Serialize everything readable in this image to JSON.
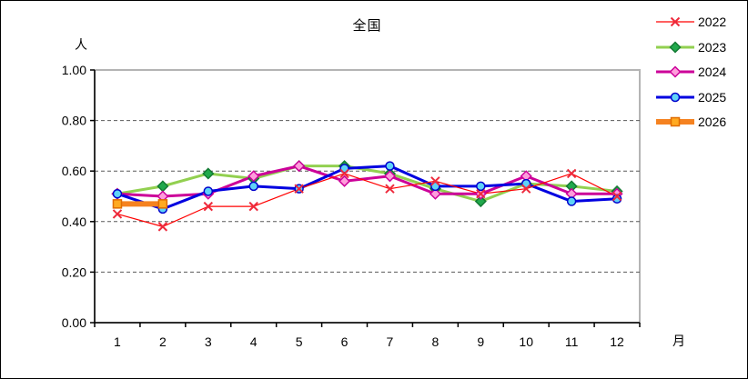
{
  "chart_data": {
    "type": "line",
    "title": "全国",
    "ylabel": "人",
    "xlabel": "月",
    "categories": [
      "1",
      "2",
      "3",
      "4",
      "5",
      "6",
      "7",
      "8",
      "9",
      "10",
      "11",
      "12"
    ],
    "ylim": [
      0.0,
      1.0
    ],
    "ytick_step": 0.2,
    "ytick_labels": [
      "0.00",
      "0.20",
      "0.40",
      "0.60",
      "0.80",
      "1.00"
    ],
    "grid": "horizontal-dashed",
    "legend_position": "top-right-outside",
    "series": [
      {
        "name": "2022",
        "line_color": "#ff0000",
        "line_width": 1.2,
        "marker": "x",
        "marker_color": "#ee2a3c",
        "values": [
          0.43,
          0.38,
          0.46,
          0.46,
          0.53,
          0.59,
          0.53,
          0.56,
          0.51,
          0.53,
          0.59,
          0.5
        ]
      },
      {
        "name": "2023",
        "line_color": "#92d050",
        "line_width": 3,
        "marker": "diamond-filled",
        "marker_color": "#137a33",
        "marker_fill": "#21a94c",
        "values": [
          0.51,
          0.54,
          0.59,
          0.57,
          0.62,
          0.62,
          0.59,
          0.53,
          0.48,
          0.55,
          0.54,
          0.52
        ]
      },
      {
        "name": "2024",
        "line_color": "#cc0099",
        "line_width": 3,
        "marker": "diamond-open",
        "marker_color": "#cc0099",
        "marker_fill": "#ff9ddb",
        "values": [
          0.51,
          0.5,
          0.51,
          0.58,
          0.62,
          0.56,
          0.58,
          0.51,
          0.51,
          0.58,
          0.51,
          0.51
        ]
      },
      {
        "name": "2025",
        "line_color": "#0000e0",
        "line_width": 3,
        "marker": "circle",
        "marker_color": "#0000cc",
        "marker_fill": "#5fd3f7",
        "values": [
          0.51,
          0.45,
          0.52,
          0.54,
          0.53,
          0.61,
          0.62,
          0.54,
          0.54,
          0.55,
          0.48,
          0.49
        ]
      },
      {
        "name": "2026",
        "line_color": "#f58220",
        "line_width": 6,
        "marker": "square",
        "marker_color": "#e06c00",
        "marker_fill": "#ffaa22",
        "values": [
          0.47,
          0.47,
          null,
          null,
          null,
          null,
          null,
          null,
          null,
          null,
          null,
          null
        ]
      }
    ]
  }
}
